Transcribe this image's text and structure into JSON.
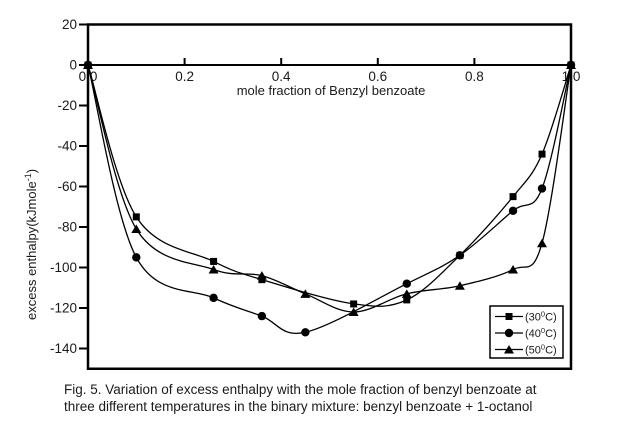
{
  "figure": {
    "caption_line1": "Fig. 5. Variation of excess enthalpy with the mole fraction of benzyl benzoate at",
    "caption_line2": "three different temperatures in the binary mixture: benzyl benzoate + 1-octanol"
  },
  "chart_data": {
    "type": "line",
    "title": "",
    "xlabel": "mole fraction of Benzyl benzoate",
    "ylabel": {
      "prefix": "excess enthalpy(kJmole",
      "sup": "-1",
      "suffix": ")"
    },
    "xlim": [
      0,
      1.0
    ],
    "ylim": [
      -150,
      20
    ],
    "grid": false,
    "legend_position": "lower right",
    "axis_color": "#000000",
    "x_ticks": [
      {
        "v": 0.0,
        "label": "0.0"
      },
      {
        "v": 0.2,
        "label": "0.2"
      },
      {
        "v": 0.4,
        "label": "0.4"
      },
      {
        "v": 0.6,
        "label": "0.6"
      },
      {
        "v": 0.8,
        "label": "0.8"
      },
      {
        "v": 1.0,
        "label": "1.0"
      }
    ],
    "y_ticks": [
      {
        "v": 20,
        "label": "20"
      },
      {
        "v": 0,
        "label": "0"
      },
      {
        "v": -20,
        "label": "-20"
      },
      {
        "v": -40,
        "label": "-40"
      },
      {
        "v": -60,
        "label": "-60"
      },
      {
        "v": -80,
        "label": "-80"
      },
      {
        "v": -100,
        "label": "-100"
      },
      {
        "v": -120,
        "label": "-120"
      },
      {
        "v": -140,
        "label": "-140"
      }
    ],
    "series": [
      {
        "name": "30C",
        "legend": {
          "prefix": "(30",
          "sup": "0",
          "suffix": "C)"
        },
        "marker": "square",
        "color": "#000000",
        "points": [
          [
            0,
            0
          ],
          [
            0.1,
            -75
          ],
          [
            0.26,
            -97
          ],
          [
            0.36,
            -106
          ],
          [
            0.55,
            -118
          ],
          [
            0.66,
            -116
          ],
          [
            0.77,
            -94
          ],
          [
            0.88,
            -65
          ],
          [
            0.94,
            -44
          ],
          [
            1.0,
            0
          ]
        ]
      },
      {
        "name": "40C",
        "legend": {
          "prefix": "(40",
          "sup": "0",
          "suffix": "C)"
        },
        "marker": "circle",
        "color": "#000000",
        "points": [
          [
            0,
            0
          ],
          [
            0.1,
            -95
          ],
          [
            0.26,
            -115
          ],
          [
            0.36,
            -124
          ],
          [
            0.45,
            -132
          ],
          [
            0.66,
            -108
          ],
          [
            0.77,
            -94
          ],
          [
            0.88,
            -72
          ],
          [
            0.94,
            -61
          ],
          [
            1.0,
            0
          ]
        ]
      },
      {
        "name": "50C",
        "legend": {
          "prefix": "(50",
          "sup": "0",
          "suffix": "C)"
        },
        "marker": "triangle",
        "color": "#000000",
        "points": [
          [
            0,
            0
          ],
          [
            0.1,
            -81
          ],
          [
            0.26,
            -101
          ],
          [
            0.36,
            -104
          ],
          [
            0.45,
            -113
          ],
          [
            0.55,
            -122
          ],
          [
            0.66,
            -113
          ],
          [
            0.77,
            -109
          ],
          [
            0.88,
            -101
          ],
          [
            0.94,
            -88
          ],
          [
            1.0,
            0
          ]
        ]
      }
    ]
  }
}
